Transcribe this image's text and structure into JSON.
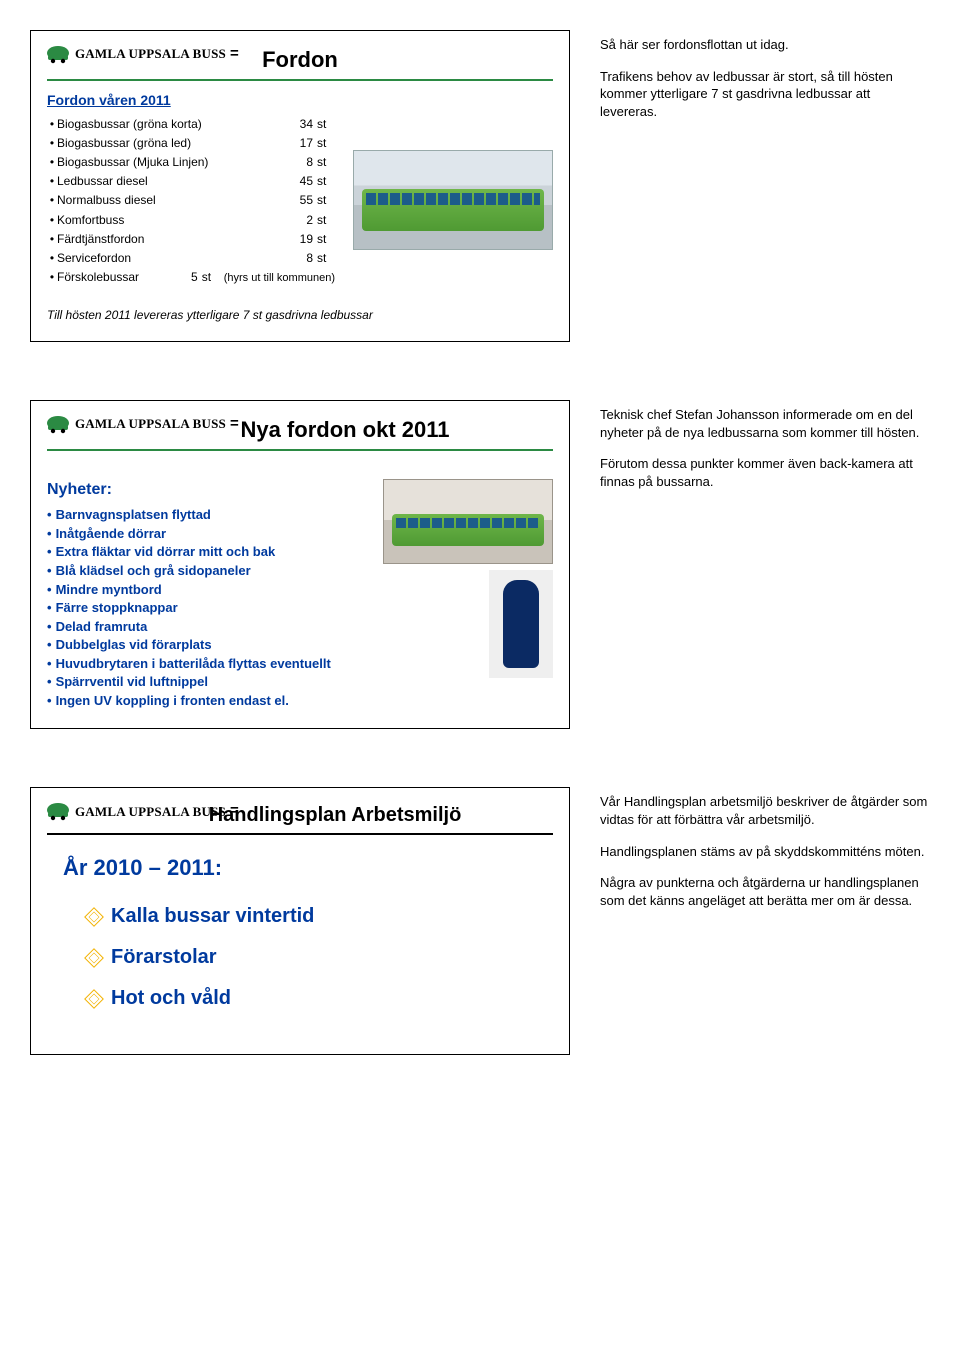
{
  "brand": {
    "name": "GAMLA UPPSALA BUSS",
    "logo_color": "#2b8a43",
    "eq": "="
  },
  "slide1": {
    "title": "Fordon",
    "title_color": "#000000",
    "underline_color": "#2b8a43",
    "subhead": "Fordon våren 2011",
    "subhead_color": "#003a9e",
    "rows": [
      {
        "label": "Biogasbussar (gröna korta)",
        "qty": "34",
        "unit": "st",
        "note": ""
      },
      {
        "label": "Biogasbussar (gröna led)",
        "qty": "17",
        "unit": "st",
        "note": ""
      },
      {
        "label": "Biogasbussar (Mjuka Linjen)",
        "qty": "8",
        "unit": "st",
        "note": ""
      },
      {
        "label": "Ledbussar diesel",
        "qty": "45",
        "unit": "st",
        "note": ""
      },
      {
        "label": "Normalbuss diesel",
        "qty": "55",
        "unit": "st",
        "note": ""
      },
      {
        "label": "Komfortbuss",
        "qty": "2",
        "unit": "st",
        "note": ""
      },
      {
        "label": "Färdtjänstfordon",
        "qty": "19",
        "unit": "st",
        "note": ""
      },
      {
        "label": "Servicefordon",
        "qty": "8",
        "unit": "st",
        "note": ""
      },
      {
        "label": "Förskolebussar",
        "qty": "5",
        "unit": "st",
        "note": "(hyrs ut till kommunen)"
      }
    ],
    "footnote": "Till hösten 2011 levereras ytterligare 7 st gasdrivna ledbussar",
    "notes": [
      "Så här ser fordonsflottan ut idag.",
      "Trafikens behov av ledbussar är stort, så till hösten kommer ytterligare 7 st gasdrivna ledbussar att levereras."
    ]
  },
  "slide2": {
    "title": "Nya fordon okt 2011",
    "title_color": "#000000",
    "underline_color": "#2b8a43",
    "heading": "Nyheter:",
    "items": [
      "Barnvagnsplatsen flyttad",
      "Inåtgående dörrar",
      "Extra fläktar vid dörrar mitt och bak",
      "Blå klädsel och grå sidopaneler",
      "Mindre myntbord",
      "Färre stoppknappar",
      "Delad framruta",
      "Dubbelglas vid förarplats",
      "Huvudbrytaren i batterilåda flyttas eventuellt",
      "Spärrventil vid luftnippel",
      "Ingen UV koppling i fronten endast el."
    ],
    "item_color": "#003a9e",
    "notes": [
      "Teknisk chef Stefan Johansson informerade om en del nyheter på de nya ledbussarna som kommer till hösten.",
      "Förutom dessa punkter kommer även back-kamera att finnas på bussarna."
    ]
  },
  "slide3": {
    "title": "Handlingsplan Arbetsmiljö",
    "underline_color": "#000000",
    "year": "År 2010 – 2011:",
    "year_color": "#003a9e",
    "items": [
      "Kalla bussar vintertid",
      "Förarstolar",
      "Hot och våld"
    ],
    "item_color": "#003a9e",
    "diamond_color": "#f2b200",
    "notes": [
      "Vår Handlingsplan arbetsmiljö beskriver de åtgärder som vidtas för att förbättra vår arbetsmiljö.",
      "Handlingsplanen stäms av på skyddskommitténs möten.",
      "Några av punkterna och åtgärderna ur handlingsplanen som det känns angeläget att berätta mer om är dessa."
    ]
  }
}
